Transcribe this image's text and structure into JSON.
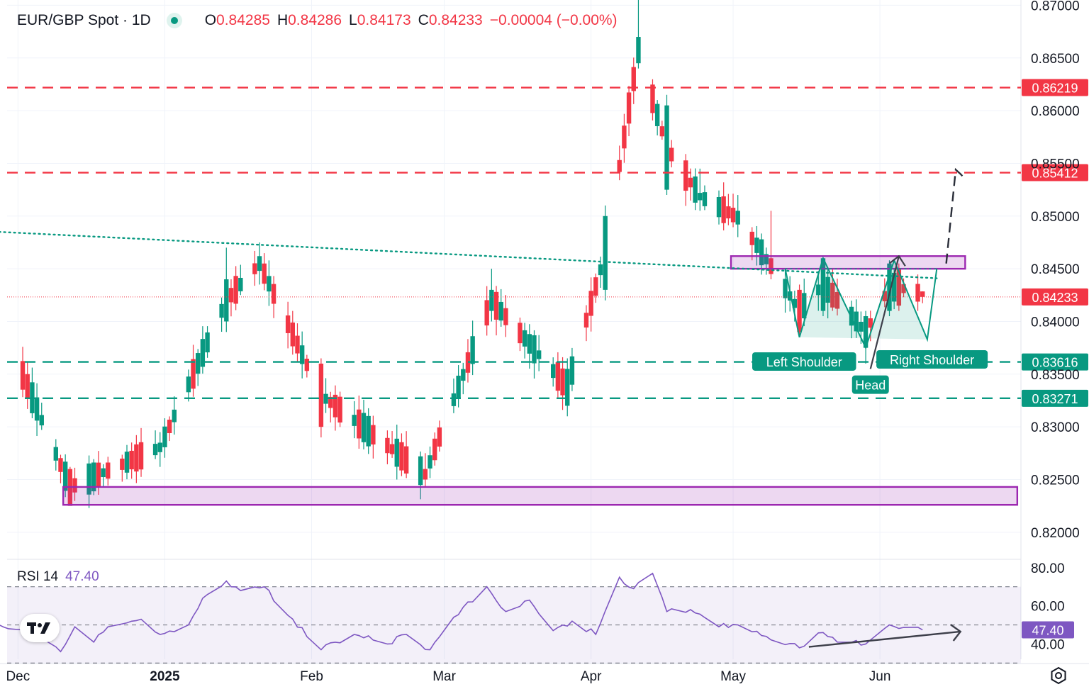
{
  "legend": {
    "symbol": "EUR/GBP Spot · 1D",
    "o_label": "O",
    "o": "0.84285",
    "h_label": "H",
    "h": "0.84286",
    "l_label": "L",
    "l": "0.84173",
    "c_label": "C",
    "c": "0.84233",
    "change": "−0.00004 (−0.00%)"
  },
  "rsi_legend": {
    "label": "RSI 14",
    "value": "47.40"
  },
  "colors": {
    "up": "#089981",
    "down": "#f23645",
    "zone": "#9c27b0",
    "trendline": "#089981",
    "rsi_line": "#7e57c2",
    "arrow": "#3d3f4a"
  },
  "chart_data": {
    "type": "candlestick",
    "symbol": "EUR/GBP Spot",
    "interval": "1D",
    "y_range": [
      0.8175,
      0.8705
    ],
    "y_ticks": [
      "0.87000",
      "0.86500",
      "0.86000",
      "0.85500",
      "0.85000",
      "0.84500",
      "0.84000",
      "0.83500",
      "0.83000",
      "0.82500",
      "0.82000"
    ],
    "x_labels": [
      "Dec",
      "2025",
      "Feb",
      "Mar",
      "Apr",
      "May",
      "Jun"
    ],
    "anchors": {
      "Dec 1": [
        0.8366,
        0.8353,
        0.8366,
        0.8355
      ],
      "Dec 12": [
        0.826,
        0.8225,
        0.8262,
        0.8238
      ],
      "Dec 31": [
        0.8276,
        0.8285,
        0.8295,
        0.8262
      ],
      "Jan 14": [
        0.84,
        0.844,
        0.847,
        0.839
      ],
      "Jan 21": [
        0.8448,
        0.8462,
        0.8475,
        0.8435
      ],
      "Feb 3": [
        0.836,
        0.83,
        0.8365,
        0.829
      ],
      "Feb 25": [
        0.826,
        0.825,
        0.8275,
        0.8243
      ],
      "Mar 11": [
        0.841,
        0.843,
        0.845,
        0.84
      ],
      "Mar 27": [
        0.832,
        0.8355,
        0.8365,
        0.831
      ],
      "Apr 4": [
        0.843,
        0.85,
        0.851,
        0.842
      ],
      "Apr 11": [
        0.8645,
        0.867,
        0.871,
        0.864
      ],
      "Apr 17": [
        0.8525,
        0.8605,
        0.8615,
        0.852
      ],
      "Apr 24": [
        0.8515,
        0.8522,
        0.8545,
        0.8505
      ],
      "May 2": [
        0.8492,
        0.8505,
        0.852,
        0.848
      ],
      "May 9": [
        0.846,
        0.8445,
        0.8505,
        0.844
      ],
      "May 15": [
        0.843,
        0.839,
        0.8435,
        0.8385
      ],
      "May 20": [
        0.841,
        0.846,
        0.846,
        0.8405
      ],
      "May 29": [
        0.8375,
        0.8405,
        0.841,
        0.836
      ],
      "Jun 3": [
        0.841,
        0.8455,
        0.8458,
        0.8405
      ],
      "Jun 5": [
        0.845,
        0.8415,
        0.8455,
        0.841
      ],
      "Jun 10": [
        0.84285,
        0.84233,
        0.84286,
        0.84173
      ]
    },
    "price_levels": [
      {
        "value": 0.86219,
        "label": "0.86219",
        "style": "dashed",
        "color": "#f23645"
      },
      {
        "value": 0.85412,
        "label": "0.85412",
        "style": "dashed",
        "color": "#f23645"
      },
      {
        "value": 0.83616,
        "label": "0.83616",
        "style": "dashed",
        "color": "#089981"
      },
      {
        "value": 0.83271,
        "label": "0.83271",
        "style": "dashed",
        "color": "#089981"
      }
    ],
    "last_price": {
      "value": 0.84233,
      "label": "0.84233"
    },
    "zones": [
      {
        "from": "May 1",
        "to": "Jun 19",
        "low": 0.845,
        "high": 0.8462
      },
      {
        "from": "Dec 11",
        "to": "Jun 30",
        "low": 0.8226,
        "high": 0.8243
      }
    ],
    "trendline": {
      "from": [
        "Nov 29",
        0.8485
      ],
      "to": [
        "Apr 2",
        0.8457
      ],
      "extend_to": "Jun 13"
    },
    "pattern_labels": [
      {
        "text": "Left Shoulder",
        "date": "May 16",
        "price": 0.8362
      },
      {
        "text": "Head",
        "date": "May 30",
        "price": 0.834
      },
      {
        "text": "Right Shoulder",
        "date": "Jun 12",
        "price": 0.8364
      }
    ],
    "pattern_path": [
      [
        "May 12",
        0.845
      ],
      [
        "May 15",
        0.8385
      ],
      [
        "May 20",
        0.846
      ],
      [
        "May 29",
        0.8375
      ],
      [
        "Jun 4",
        0.8458
      ],
      [
        "Jun 11",
        0.8383
      ],
      [
        "Jun 13",
        0.845
      ]
    ],
    "projection": [
      [
        "Jun 15",
        0.8455
      ],
      [
        "Jun 17",
        0.8544
      ],
      [
        "Jun 18",
        0.854
      ],
      [
        "Jun 19",
        0.8535
      ]
    ],
    "rsi": {
      "period": 14,
      "current": 47.4,
      "y_range": [
        32,
        84
      ],
      "ticks": [
        "80.00",
        "60.00",
        "40.00"
      ],
      "bands": [
        70,
        50,
        30
      ],
      "anchors": {
        "Nov 29": 50,
        "Dec 6": 43,
        "Dec 10": 36,
        "Dec 13": 49,
        "Dec 17": 41,
        "Dec 20": 49,
        "Dec 27": 53,
        "Dec 31": 45,
        "Jan 6": 50,
        "Jan 9": 64,
        "Jan 14": 73,
        "Jan 17": 68,
        "Jan 22": 70,
        "Jan 27": 55,
        "Feb 3": 37,
        "Feb 10": 45,
        "Feb 17": 40,
        "Feb 21": 45,
        "Feb 26": 37,
        "Mar 3": 54,
        "Mar 10": 70,
        "Mar 14": 57,
        "Mar 19": 63,
        "Mar 24": 47,
        "Mar 28": 52,
        "Apr 2": 45,
        "Apr 7": 75,
        "Apr 10": 69,
        "Apr 14": 77,
        "Apr 17": 57,
        "Apr 22": 58,
        "Apr 28": 49,
        "May 2": 50,
        "May 8": 44,
        "May 15": 38,
        "May 20": 46,
        "May 23": 41,
        "May 29": 40,
        "Jun 3": 50,
        "Jun 10": 47.4
      },
      "divergence_arrow": [
        [
          "May 17",
          38.5
        ],
        [
          "Jun 18",
          46.5
        ]
      ]
    }
  }
}
